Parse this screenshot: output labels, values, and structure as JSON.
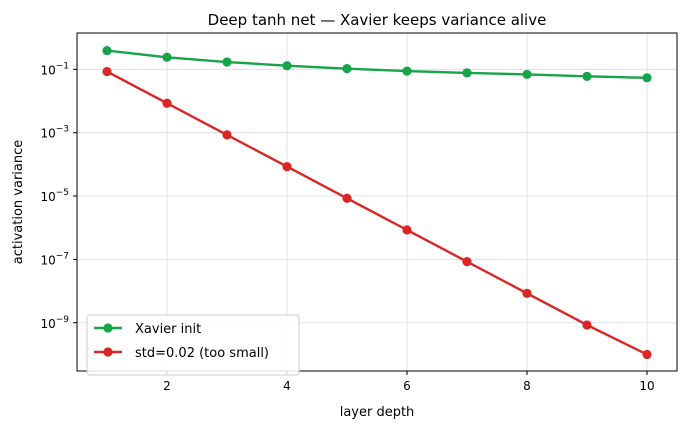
{
  "chart_data": {
    "type": "line",
    "title": "Deep tanh net — Xavier keeps variance alive",
    "xlabel": "layer depth",
    "ylabel": "activation variance",
    "x": [
      1,
      2,
      3,
      4,
      5,
      6,
      7,
      8,
      9,
      10
    ],
    "xlim": [
      0.5,
      10.5
    ],
    "ylim": [
      3e-11,
      1.4
    ],
    "yscale": "log",
    "xticks": [
      2,
      4,
      6,
      8,
      10
    ],
    "yticks": [
      {
        "value": 1e-09,
        "base": "10",
        "exp": "−9"
      },
      {
        "value": 1e-07,
        "base": "10",
        "exp": "−7"
      },
      {
        "value": 1e-05,
        "base": "10",
        "exp": "−5"
      },
      {
        "value": 0.001,
        "base": "10",
        "exp": "−3"
      },
      {
        "value": 0.1,
        "base": "10",
        "exp": "−1"
      }
    ],
    "grid": true,
    "legend_position": "bottom-left",
    "series": [
      {
        "name": "Xavier init",
        "color": "#16a34a",
        "values": [
          0.39,
          0.24,
          0.17,
          0.13,
          0.105,
          0.088,
          0.077,
          0.069,
          0.06,
          0.054
        ]
      },
      {
        "name": "std=0.02 (too small)",
        "color": "#dc2626",
        "values": [
          0.085,
          0.0085,
          0.00085,
          8.5e-05,
          8.5e-06,
          8.5e-07,
          8.5e-08,
          8.5e-09,
          8.5e-10,
          1e-10
        ]
      }
    ]
  }
}
